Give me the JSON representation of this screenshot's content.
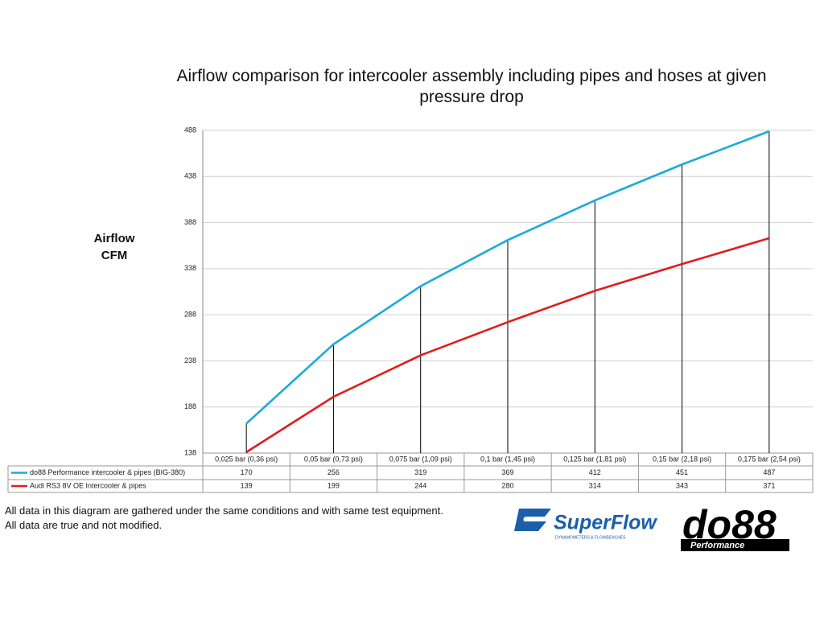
{
  "chart_data": {
    "type": "line",
    "title": "Airflow comparison for intercooler assembly including pipes and hoses at given pressure drop",
    "ylabel": "Airflow CFM",
    "categories": [
      "0,025 bar (0,36 psi)",
      "0,05 bar (0,73 psi)",
      "0,075 bar (1,09 psi)",
      "0,1 bar (1,45 psi)",
      "0,125 bar (1,81 psi)",
      "0,15 bar (2,18 psi)",
      "0,175 bar (2,54 psi)"
    ],
    "series": [
      {
        "name": "do88 Performance intercooler & pipes (BIG-380)",
        "color": "#1aabdc",
        "values": [
          170,
          256,
          319,
          369,
          412,
          451,
          487
        ]
      },
      {
        "name": "Audi RS3 8V OE Intercooler & pipes",
        "color": "#e31b1b",
        "values": [
          139,
          199,
          244,
          280,
          314,
          343,
          371
        ]
      }
    ],
    "ylim": [
      138,
      488
    ],
    "yticks": [
      138,
      188,
      238,
      288,
      338,
      388,
      438,
      488
    ],
    "grid": true,
    "drop_lines": true
  },
  "footnotes": [
    "All data in this diagram are gathered under the same conditions and with same test equipment.",
    "All data are true and not modified."
  ],
  "logos": {
    "superflow": "SuperFlow",
    "superflow_sub": "DYNAMOMETERS & FLOWBENCHES",
    "do88": "do88",
    "do88_sub": "Performance"
  }
}
